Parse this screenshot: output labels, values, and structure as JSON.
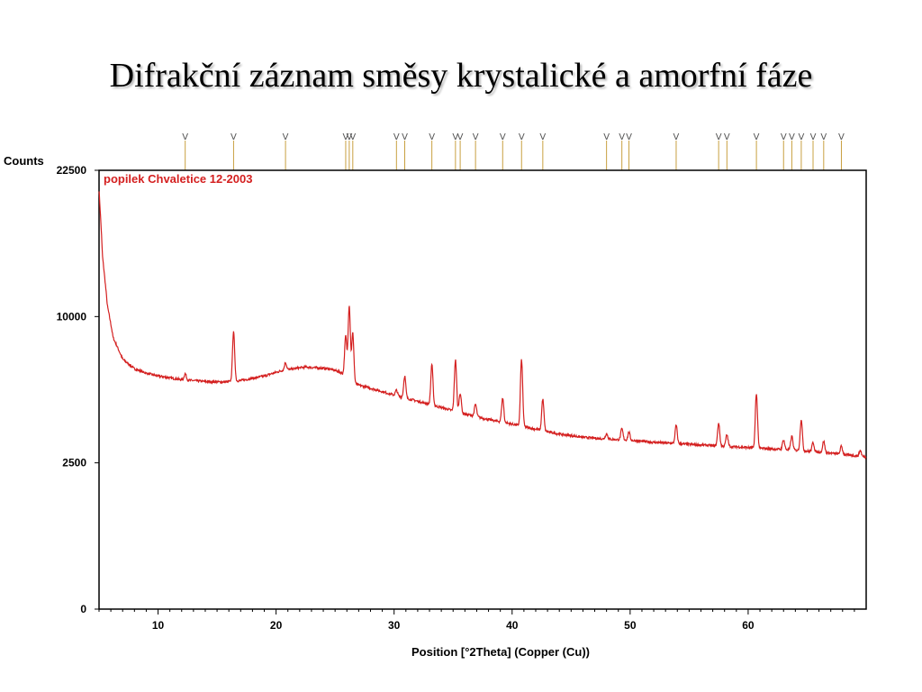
{
  "slide": {
    "title": "Difrakční záznam směsy krystalické a amorfní fáze"
  },
  "chart_data": {
    "type": "line",
    "title": "",
    "xlabel": "Position [°2Theta] (Copper (Cu))",
    "ylabel": "Counts",
    "xlim": [
      5,
      70
    ],
    "ylim": [
      0,
      22500
    ],
    "y_scale": "sqrt",
    "x_ticks": [
      10,
      20,
      30,
      40,
      50,
      60
    ],
    "y_ticks": [
      0,
      2500,
      10000,
      22500
    ],
    "grid": false,
    "legend": "top-left",
    "colors": {
      "series": "#d42020",
      "reference_lines": "#c8a040"
    },
    "series": [
      {
        "name": "popilek Chvaletice 12-2003",
        "background": [
          [
            5.0,
            20500
          ],
          [
            5.3,
            14500
          ],
          [
            5.7,
            10800
          ],
          [
            6.2,
            8600
          ],
          [
            7.0,
            7300
          ],
          [
            8.0,
            6750
          ],
          [
            9.0,
            6500
          ],
          [
            10.0,
            6350
          ],
          [
            12.0,
            6150
          ],
          [
            14.0,
            6050
          ],
          [
            15.5,
            6020
          ],
          [
            17.0,
            6100
          ],
          [
            19.0,
            6350
          ],
          [
            20.5,
            6650
          ],
          [
            22.5,
            6850
          ],
          [
            24.5,
            6750
          ],
          [
            25.5,
            6550
          ],
          [
            26.5,
            5950
          ],
          [
            28.0,
            5700
          ],
          [
            30.0,
            5350
          ],
          [
            32.0,
            5050
          ],
          [
            34.0,
            4750
          ],
          [
            36.0,
            4450
          ],
          [
            38.0,
            4200
          ],
          [
            40.0,
            4000
          ],
          [
            42.0,
            3780
          ],
          [
            44.0,
            3580
          ],
          [
            46.0,
            3450
          ],
          [
            48.0,
            3380
          ],
          [
            50.0,
            3330
          ],
          [
            52.0,
            3250
          ],
          [
            54.0,
            3200
          ],
          [
            56.0,
            3150
          ],
          [
            58.0,
            3100
          ],
          [
            60.0,
            3050
          ],
          [
            62.0,
            3000
          ],
          [
            64.0,
            2950
          ],
          [
            66.0,
            2880
          ],
          [
            68.0,
            2800
          ],
          [
            70.0,
            2700
          ]
        ],
        "peaks": [
          {
            "position": 12.3,
            "intensity": 6480
          },
          {
            "position": 16.4,
            "intensity": 8950
          },
          {
            "position": 20.8,
            "intensity": 7100
          },
          {
            "position": 25.9,
            "intensity": 8700
          },
          {
            "position": 26.2,
            "intensity": 10750
          },
          {
            "position": 26.5,
            "intensity": 8900
          },
          {
            "position": 30.2,
            "intensity": 5600
          },
          {
            "position": 30.9,
            "intensity": 6350
          },
          {
            "position": 33.2,
            "intensity": 7000
          },
          {
            "position": 35.2,
            "intensity": 7250
          },
          {
            "position": 35.6,
            "intensity": 5450
          },
          {
            "position": 36.9,
            "intensity": 4900
          },
          {
            "position": 39.2,
            "intensity": 5200
          },
          {
            "position": 40.8,
            "intensity": 7250
          },
          {
            "position": 42.6,
            "intensity": 5150
          },
          {
            "position": 48.0,
            "intensity": 3600
          },
          {
            "position": 49.3,
            "intensity": 3800
          },
          {
            "position": 49.9,
            "intensity": 3650
          },
          {
            "position": 53.9,
            "intensity": 3950
          },
          {
            "position": 57.5,
            "intensity": 4050
          },
          {
            "position": 58.2,
            "intensity": 3550
          },
          {
            "position": 60.7,
            "intensity": 5400
          },
          {
            "position": 63.0,
            "intensity": 3350
          },
          {
            "position": 63.7,
            "intensity": 3500
          },
          {
            "position": 64.5,
            "intensity": 4200
          },
          {
            "position": 65.5,
            "intensity": 3250
          },
          {
            "position": 66.4,
            "intensity": 3300
          },
          {
            "position": 67.9,
            "intensity": 3100
          },
          {
            "position": 69.5,
            "intensity": 2950
          }
        ]
      }
    ],
    "reference_peaks": [
      12.3,
      16.4,
      20.8,
      25.9,
      26.2,
      26.5,
      30.2,
      30.9,
      33.2,
      35.2,
      35.6,
      36.9,
      39.2,
      40.8,
      42.6,
      48.0,
      49.3,
      49.9,
      53.9,
      57.5,
      58.2,
      60.7,
      63.0,
      63.7,
      64.5,
      65.5,
      66.4,
      67.9
    ]
  }
}
